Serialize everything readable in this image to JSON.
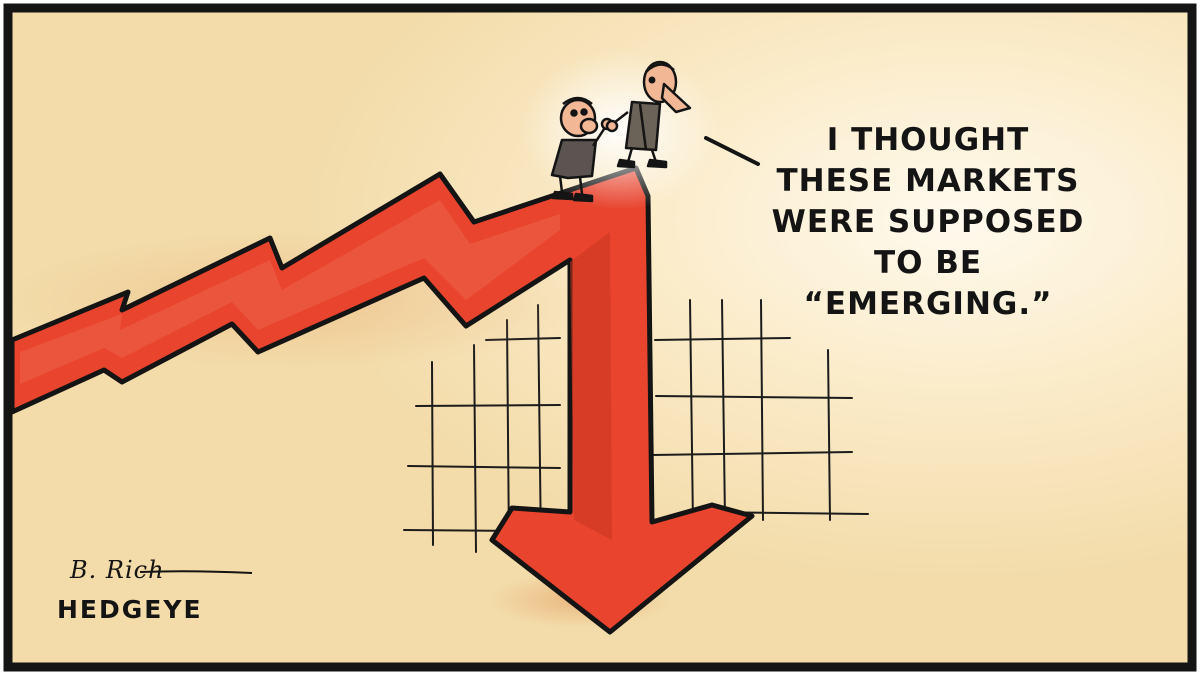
{
  "cartoon": {
    "speech": [
      "I THOUGHT",
      "THESE MARKETS",
      "WERE SUPPOSED",
      "TO BE",
      "“EMERGING.”"
    ],
    "signature": "B. Rich",
    "brand": "HEDGEYE"
  },
  "colors": {
    "background": "#f6e4ba",
    "background_glow": "#fdf6e4",
    "arrow": "#e8442e",
    "arrow_dark": "#b82e1e",
    "outline": "#141414"
  }
}
